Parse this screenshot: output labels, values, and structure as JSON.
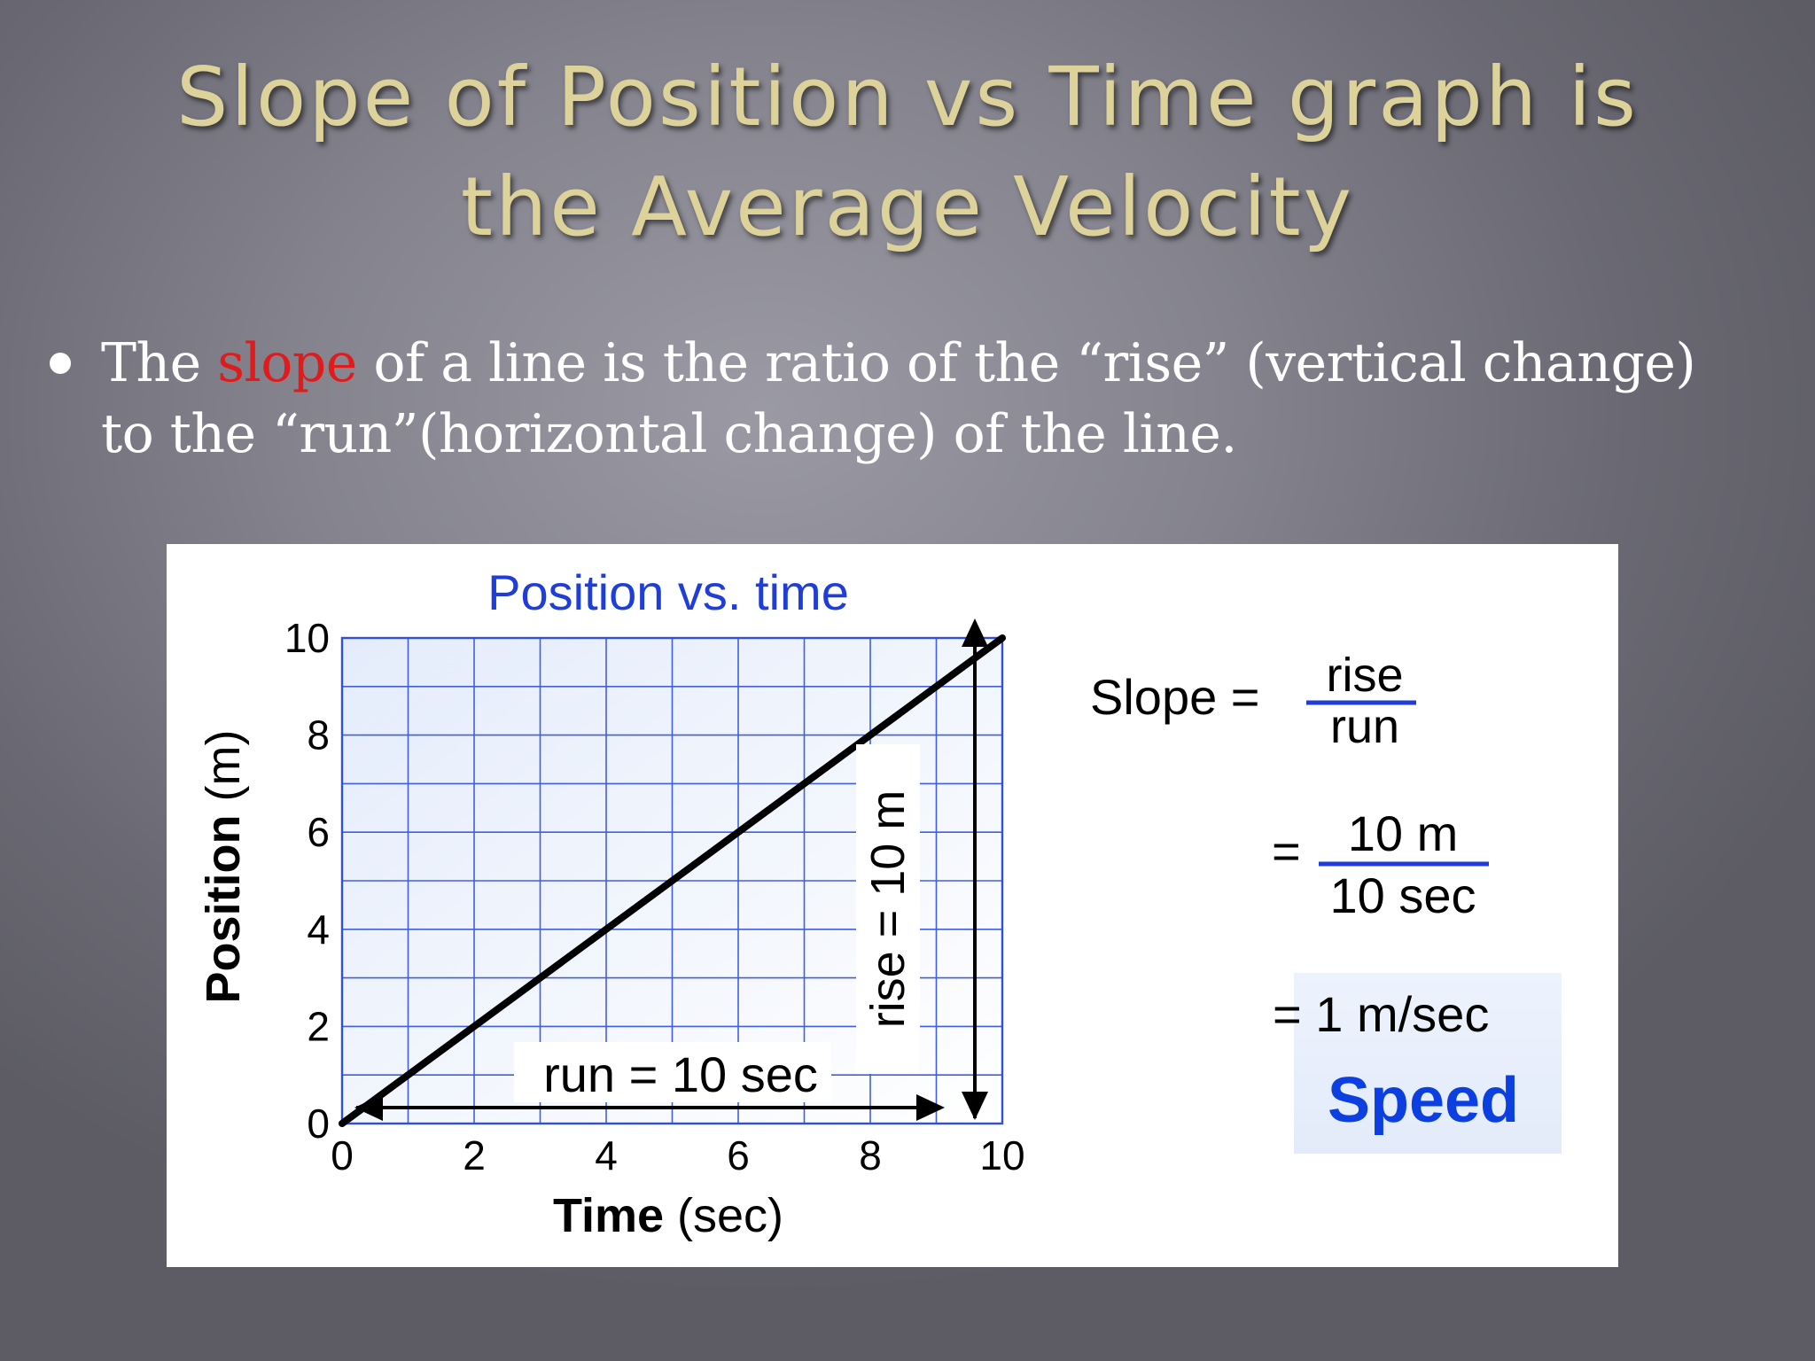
{
  "slide": {
    "title_line1": "Slope of Position vs Time graph is",
    "title_line2": "the Average Velocity",
    "bullet": {
      "text_before": "The ",
      "highlight": "slope",
      "text_line1_after": " of a line is the ratio of the “rise” (vertical change)",
      "text_line2": "to the “run”(horizontal change) of the line."
    }
  },
  "chart_data": {
    "type": "line",
    "title": "Position vs. time",
    "xlabel_bold": "Time",
    "xlabel_unit": " (sec)",
    "ylabel_bold": "Position",
    "ylabel_unit": " (m)",
    "xlim": [
      0,
      10
    ],
    "ylim": [
      0,
      10
    ],
    "x_ticks": [
      "0",
      "2",
      "4",
      "6",
      "8",
      "10"
    ],
    "y_ticks": [
      "0",
      "2",
      "4",
      "6",
      "8",
      "10"
    ],
    "grid": true,
    "series": [
      {
        "x": [
          0,
          10
        ],
        "y": [
          0,
          10
        ]
      }
    ],
    "annotations": {
      "run_label": "run = 10 sec",
      "rise_label": "rise = 10 m"
    }
  },
  "formula": {
    "slope_label": "Slope =",
    "rise": "rise",
    "run": "run",
    "eq1": "=",
    "num": "10 m",
    "den": "10 sec",
    "eq2": "= 1 m/sec",
    "speed": "Speed"
  },
  "colors": {
    "title_gold": "#ddd29a",
    "highlight_red": "#e01b1b",
    "chart_blue": "#1f3ed8",
    "grid_blue": "#3355dd",
    "speed_blue": "#0b3fe0"
  }
}
